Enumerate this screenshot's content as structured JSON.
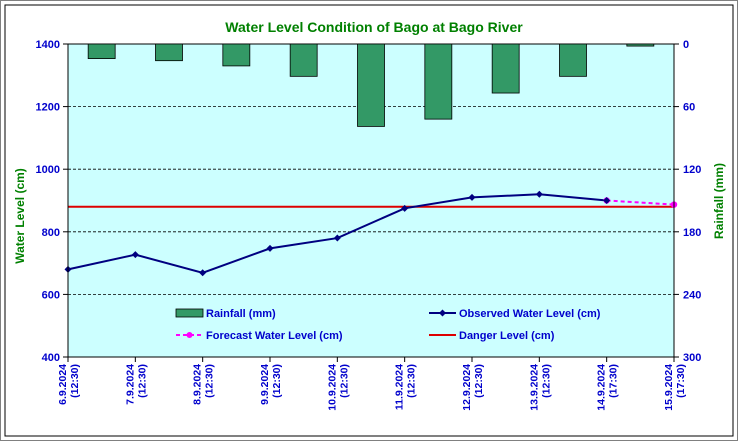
{
  "chart_data": {
    "type": "line",
    "title": "Water Level Condition of Bago at Bago River",
    "ylabel": "Water Level (cm)",
    "y2label": "Rainfall (mm)",
    "ylim": [
      400,
      1400
    ],
    "y2lim": [
      0,
      300
    ],
    "y2_inverted": true,
    "yticks": [
      "400",
      "600",
      "800",
      "1000",
      "1200",
      "1400"
    ],
    "y2ticks": [
      "300",
      "240",
      "180",
      "120",
      "60",
      "0"
    ],
    "grid": true,
    "legend_position": "bottom",
    "categories": [
      {
        "date": "6.9.2024",
        "time": "(12:30)"
      },
      {
        "date": "7.9.2024",
        "time": "(12:30)"
      },
      {
        "date": "8.9.2024",
        "time": "(12:30)"
      },
      {
        "date": "9.9.2024",
        "time": "(12:30)"
      },
      {
        "date": "10.9.2024",
        "time": "(12:30)"
      },
      {
        "date": "11.9.2024",
        "time": "(12:30)"
      },
      {
        "date": "12.9.2024",
        "time": "(12:30)"
      },
      {
        "date": "13.9.2024",
        "time": "(12:30)"
      },
      {
        "date": "14.9.2024",
        "time": "(17:30)"
      },
      {
        "date": "15.9.2024",
        "time": "(17:30)"
      }
    ],
    "series": [
      {
        "name": "Rainfall (mm)",
        "type": "bar",
        "axis": "right",
        "color": "#339966",
        "values": [
          14,
          16,
          21,
          31,
          79,
          72,
          47,
          31,
          2,
          null
        ]
      },
      {
        "name": "Observed Water Level (cm)",
        "type": "line",
        "axis": "left",
        "color": "#000080",
        "values": [
          680,
          727,
          669,
          747,
          780,
          875,
          910,
          920,
          900,
          null
        ]
      },
      {
        "name": "Forecast Water Level (cm)",
        "type": "line",
        "axis": "left",
        "color": "#FF00FF",
        "values": [
          null,
          null,
          null,
          null,
          null,
          null,
          null,
          null,
          900,
          887
        ]
      },
      {
        "name": "Danger Level (cm)",
        "type": "line",
        "axis": "left",
        "color": "#DD0000",
        "values": [
          880,
          880,
          880,
          880,
          880,
          880,
          880,
          880,
          880,
          880
        ]
      }
    ]
  },
  "colors": {
    "plot_background": "#CCFFFF",
    "text_blue": "#0000CC",
    "title_green": "#008000"
  }
}
